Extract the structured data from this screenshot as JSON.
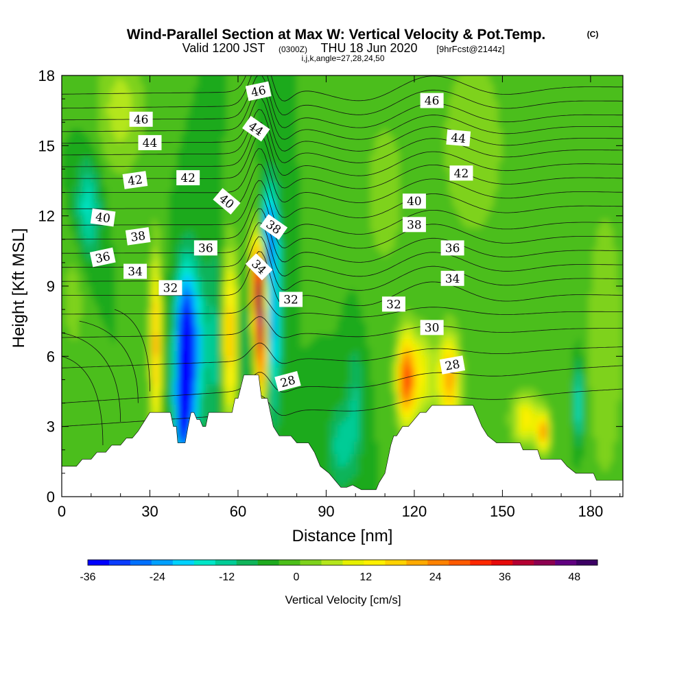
{
  "chart_data": {
    "type": "heatmap",
    "title": "Wind-Parallel Section at Max W: Vertical Velocity & Pot.Temp.",
    "title_mark": "(C)",
    "subtitle": {
      "valid": "Valid 1200 JST",
      "zulu": "(0300Z)",
      "date": "THU 18 Jun 2020",
      "forecast": "[9hrFcst@2144z]"
    },
    "subtitle2": "i,j,k,angle=27,28,24,50",
    "xlabel": "Distance [nm]",
    "ylabel": "Height [Kft MSL]",
    "xlim": [
      0,
      191
    ],
    "ylim": [
      0,
      18
    ],
    "x_ticks": [
      "0",
      "30",
      "60",
      "90",
      "120",
      "150",
      "180"
    ],
    "y_ticks": [
      "0",
      "3",
      "6",
      "9",
      "12",
      "15",
      "18"
    ],
    "colorbar": {
      "label": "Vertical Velocity [cm/s]",
      "min": -36,
      "max": 52,
      "step": 4,
      "tick_labels": [
        "-36",
        "-24",
        "-12",
        "0",
        "12",
        "24",
        "36",
        "48"
      ],
      "colors": [
        "#0000ff",
        "#0a3cff",
        "#0070ff",
        "#00a0ff",
        "#00d2ff",
        "#00e6c8",
        "#00cc96",
        "#10b45a",
        "#1eaa1e",
        "#4cbe1a",
        "#7ed21c",
        "#b4e61c",
        "#e6f000",
        "#fff000",
        "#ffd200",
        "#ffaa00",
        "#ff8200",
        "#ff5a00",
        "#ff2800",
        "#e60a0a",
        "#b40032",
        "#8c0050",
        "#600080",
        "#3c0064"
      ]
    },
    "terrain_kft": [
      [
        0,
        1.3
      ],
      [
        5,
        1.3
      ],
      [
        7,
        1.6
      ],
      [
        10,
        1.6
      ],
      [
        12,
        1.9
      ],
      [
        15,
        1.9
      ],
      [
        17,
        2.2
      ],
      [
        20,
        2.2
      ],
      [
        22,
        2.5
      ],
      [
        24,
        2.5
      ],
      [
        26,
        2.8
      ],
      [
        28,
        3.2
      ],
      [
        30,
        3.6
      ],
      [
        37,
        3.6
      ],
      [
        38,
        3.0
      ],
      [
        39,
        3.0
      ],
      [
        39.5,
        2.3
      ],
      [
        42,
        2.3
      ],
      [
        43,
        3.0
      ],
      [
        44,
        3.6
      ],
      [
        45,
        3.6
      ],
      [
        46,
        3.3
      ],
      [
        47,
        3.3
      ],
      [
        48,
        3.0
      ],
      [
        49,
        3.0
      ],
      [
        50,
        3.6
      ],
      [
        54,
        3.6
      ],
      [
        55,
        3.6
      ],
      [
        57,
        3.6
      ],
      [
        58,
        3.6
      ],
      [
        59,
        4.2
      ],
      [
        60,
        4.2
      ],
      [
        62,
        5.2
      ],
      [
        67,
        5.2
      ],
      [
        68,
        4.2
      ],
      [
        70,
        4.2
      ],
      [
        71,
        3.6
      ],
      [
        72,
        3.0
      ],
      [
        74,
        2.6
      ],
      [
        78,
        2.6
      ],
      [
        80,
        2.3
      ],
      [
        84,
        2.3
      ],
      [
        86,
        1.9
      ],
      [
        88,
        1.3
      ],
      [
        91,
        1.0
      ],
      [
        93,
        0.7
      ],
      [
        95,
        0.4
      ],
      [
        97,
        0.4
      ],
      [
        99,
        0.5
      ],
      [
        102,
        0.3
      ],
      [
        107,
        0.3
      ],
      [
        108,
        0.6
      ],
      [
        110,
        1.0
      ],
      [
        111,
        1.6
      ],
      [
        112,
        2.2
      ],
      [
        113,
        2.6
      ],
      [
        114,
        2.6
      ],
      [
        116,
        3.0
      ],
      [
        118,
        3.0
      ],
      [
        120,
        3.3
      ],
      [
        122,
        3.6
      ],
      [
        124,
        3.6
      ],
      [
        126,
        3.9
      ],
      [
        140,
        3.9
      ],
      [
        141,
        3.6
      ],
      [
        142,
        3.3
      ],
      [
        143,
        3.0
      ],
      [
        145,
        2.6
      ],
      [
        148,
        2.3
      ],
      [
        156,
        2.3
      ],
      [
        157,
        2.0
      ],
      [
        162,
        2.0
      ],
      [
        163,
        1.6
      ],
      [
        170,
        1.6
      ],
      [
        172,
        1.3
      ],
      [
        175,
        1.0
      ],
      [
        181,
        1.0
      ],
      [
        182,
        0.7
      ],
      [
        191,
        0.7
      ]
    ],
    "theta_levels": [
      27,
      28,
      29,
      30,
      31,
      32,
      33,
      34,
      35,
      36,
      37,
      38,
      39,
      40,
      41,
      42,
      43,
      44,
      45,
      46,
      47
    ],
    "theta_heights_west": [
      3.0,
      4.0,
      5.5,
      6.8,
      7.8,
      8.6,
      9.2,
      9.8,
      10.4,
      11.0,
      11.6,
      12.3,
      13.0,
      13.6,
      14.1,
      14.6,
      15.1,
      15.6,
      16.1,
      16.6,
      17.2
    ],
    "theta_heights_east": [
      4.6,
      5.6,
      6.4,
      7.2,
      7.9,
      8.6,
      9.3,
      9.9,
      10.5,
      11.1,
      11.7,
      12.4,
      13.0,
      13.6,
      14.2,
      14.8,
      15.3,
      15.8,
      16.3,
      16.9,
      17.5
    ],
    "contour_labels": [
      {
        "text": "46",
        "x": 27,
        "y": 16.1,
        "angle": 0
      },
      {
        "text": "44",
        "x": 30,
        "y": 15.1,
        "angle": 0
      },
      {
        "text": "42",
        "x": 25,
        "y": 13.5,
        "angle": -8
      },
      {
        "text": "40",
        "x": 14,
        "y": 11.9,
        "angle": 8
      },
      {
        "text": "38",
        "x": 26,
        "y": 11.1,
        "angle": -8
      },
      {
        "text": "36",
        "x": 14,
        "y": 10.2,
        "angle": -12
      },
      {
        "text": "34",
        "x": 25,
        "y": 9.6,
        "angle": 0
      },
      {
        "text": "32",
        "x": 37,
        "y": 8.9,
        "angle": 0
      },
      {
        "text": "42",
        "x": 43,
        "y": 13.6,
        "angle": 0
      },
      {
        "text": "36",
        "x": 49,
        "y": 10.6,
        "angle": 0
      },
      {
        "text": "40",
        "x": 56,
        "y": 12.6,
        "angle": 40
      },
      {
        "text": "46",
        "x": 67,
        "y": 17.3,
        "angle": -12
      },
      {
        "text": "44",
        "x": 66,
        "y": 15.7,
        "angle": 35
      },
      {
        "text": "38",
        "x": 72,
        "y": 11.5,
        "angle": 35
      },
      {
        "text": "34",
        "x": 67,
        "y": 9.8,
        "angle": 45
      },
      {
        "text": "32",
        "x": 78,
        "y": 8.4,
        "angle": 0
      },
      {
        "text": "28",
        "x": 77,
        "y": 4.9,
        "angle": -15
      },
      {
        "text": "46",
        "x": 126,
        "y": 16.9,
        "angle": 0
      },
      {
        "text": "44",
        "x": 135,
        "y": 15.3,
        "angle": 5
      },
      {
        "text": "42",
        "x": 136,
        "y": 13.8,
        "angle": 0
      },
      {
        "text": "40",
        "x": 120,
        "y": 12.6,
        "angle": 0
      },
      {
        "text": "38",
        "x": 120,
        "y": 11.6,
        "angle": 0
      },
      {
        "text": "36",
        "x": 133,
        "y": 10.6,
        "angle": 0
      },
      {
        "text": "34",
        "x": 133,
        "y": 9.3,
        "angle": 0
      },
      {
        "text": "32",
        "x": 113,
        "y": 8.2,
        "angle": 0
      },
      {
        "text": "30",
        "x": 126,
        "y": 7.2,
        "angle": 0
      },
      {
        "text": "28",
        "x": 133,
        "y": 5.6,
        "angle": -10
      }
    ],
    "w_features": [
      {
        "x": 42,
        "y": 5.8,
        "sx": 2.2,
        "sy": 2.4,
        "w": -48
      },
      {
        "x": 41,
        "y": 3.5,
        "sx": 1.6,
        "sy": 1.2,
        "w": -20
      },
      {
        "x": 46,
        "y": 6.5,
        "sx": 2.5,
        "sy": 2.5,
        "w": -14
      },
      {
        "x": 53,
        "y": 6.5,
        "sx": 2.2,
        "sy": 3.0,
        "w": -12
      },
      {
        "x": 32,
        "y": 6.5,
        "sx": 1.3,
        "sy": 2.8,
        "w": 26
      },
      {
        "x": 57,
        "y": 6.8,
        "sx": 2.2,
        "sy": 2.6,
        "w": 26
      },
      {
        "x": 68,
        "y": 7.3,
        "sx": 1.3,
        "sy": 2.2,
        "w": 48
      },
      {
        "x": 66,
        "y": 9.2,
        "sx": 1.4,
        "sy": 1.6,
        "w": 30
      },
      {
        "x": 72,
        "y": 8.0,
        "sx": 1.8,
        "sy": 3.0,
        "w": -22
      },
      {
        "x": 70,
        "y": 11.5,
        "sx": 1.8,
        "sy": 1.3,
        "w": -20
      },
      {
        "x": 62,
        "y": 6.5,
        "sx": 1.5,
        "sy": 2.0,
        "w": -8
      },
      {
        "x": 9,
        "y": 12.3,
        "sx": 3.0,
        "sy": 1.5,
        "w": -14
      },
      {
        "x": 117,
        "y": 5.0,
        "sx": 2.0,
        "sy": 1.3,
        "w": 30
      },
      {
        "x": 122,
        "y": 5.2,
        "sx": 4.0,
        "sy": 1.4,
        "w": 16
      },
      {
        "x": 132,
        "y": 5.0,
        "sx": 2.5,
        "sy": 1.4,
        "w": 26
      },
      {
        "x": 158,
        "y": 3.3,
        "sx": 3.5,
        "sy": 0.8,
        "w": 18
      },
      {
        "x": 164,
        "y": 2.7,
        "sx": 1.5,
        "sy": 0.6,
        "w": 26
      },
      {
        "x": 176,
        "y": 4.0,
        "sx": 1.2,
        "sy": 1.3,
        "w": -16
      },
      {
        "x": 95,
        "y": 2.2,
        "sx": 3.0,
        "sy": 1.3,
        "w": -10
      },
      {
        "x": 100,
        "y": 4.0,
        "sx": 2.0,
        "sy": 2.0,
        "w": -8
      },
      {
        "x": 185,
        "y": 6.5,
        "sx": 6.0,
        "sy": 6.0,
        "w": 6
      },
      {
        "x": 140,
        "y": 15.0,
        "sx": 8.0,
        "sy": 3.0,
        "w": 8
      },
      {
        "x": 110,
        "y": 13.0,
        "sx": 6.0,
        "sy": 3.0,
        "w": 6
      },
      {
        "x": 20,
        "y": 16.5,
        "sx": 6.0,
        "sy": 2.0,
        "w": 10
      },
      {
        "x": 4,
        "y": 8.5,
        "sx": 3.0,
        "sy": 2.0,
        "w": 6
      }
    ]
  }
}
